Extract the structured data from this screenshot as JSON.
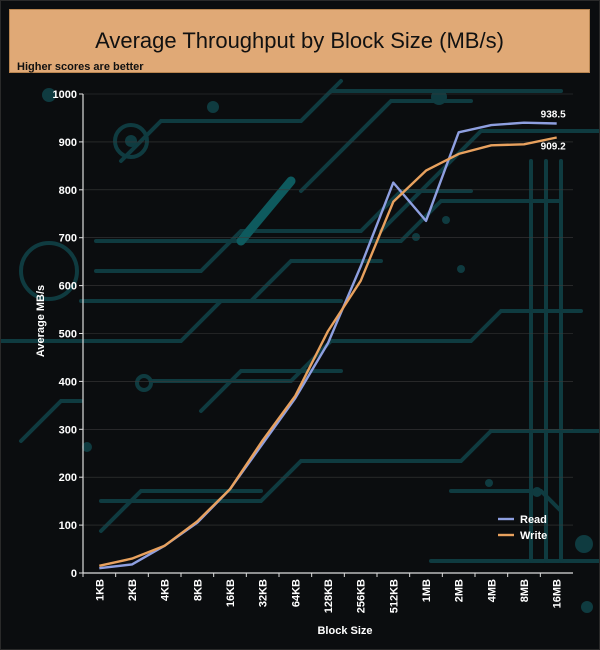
{
  "header": {
    "title": "Average Throughput by Block Size (MB/s)",
    "subtitle": "Higher scores are better"
  },
  "chart_data": {
    "type": "line",
    "title": "Average Throughput by Block Size (MB/s)",
    "subtitle": "Higher scores are better",
    "xlabel": "Block Size",
    "ylabel": "Average MB/s",
    "categories": [
      "1KB",
      "2KB",
      "4KB",
      "8KB",
      "16KB",
      "32KB",
      "64KB",
      "128KB",
      "256KB",
      "512KB",
      "1MB",
      "2MB",
      "4MB",
      "8MB",
      "16MB"
    ],
    "ylim": [
      0,
      1000
    ],
    "yticks": [
      0,
      100,
      200,
      300,
      400,
      500,
      600,
      700,
      800,
      900,
      1000
    ],
    "series": [
      {
        "name": "Read",
        "color": "#8e9fe0",
        "values": [
          10,
          18,
          57,
          105,
          175,
          270,
          365,
          480,
          640,
          815,
          735,
          920,
          935,
          940,
          938.5
        ]
      },
      {
        "name": "Write",
        "color": "#e8a15e",
        "values": [
          15,
          30,
          57,
          108,
          175,
          277,
          370,
          505,
          610,
          775,
          840,
          875,
          893,
          895,
          909.2
        ]
      }
    ],
    "end_labels": [
      "938.5",
      "909.2"
    ],
    "legend_position": "bottom-right"
  }
}
